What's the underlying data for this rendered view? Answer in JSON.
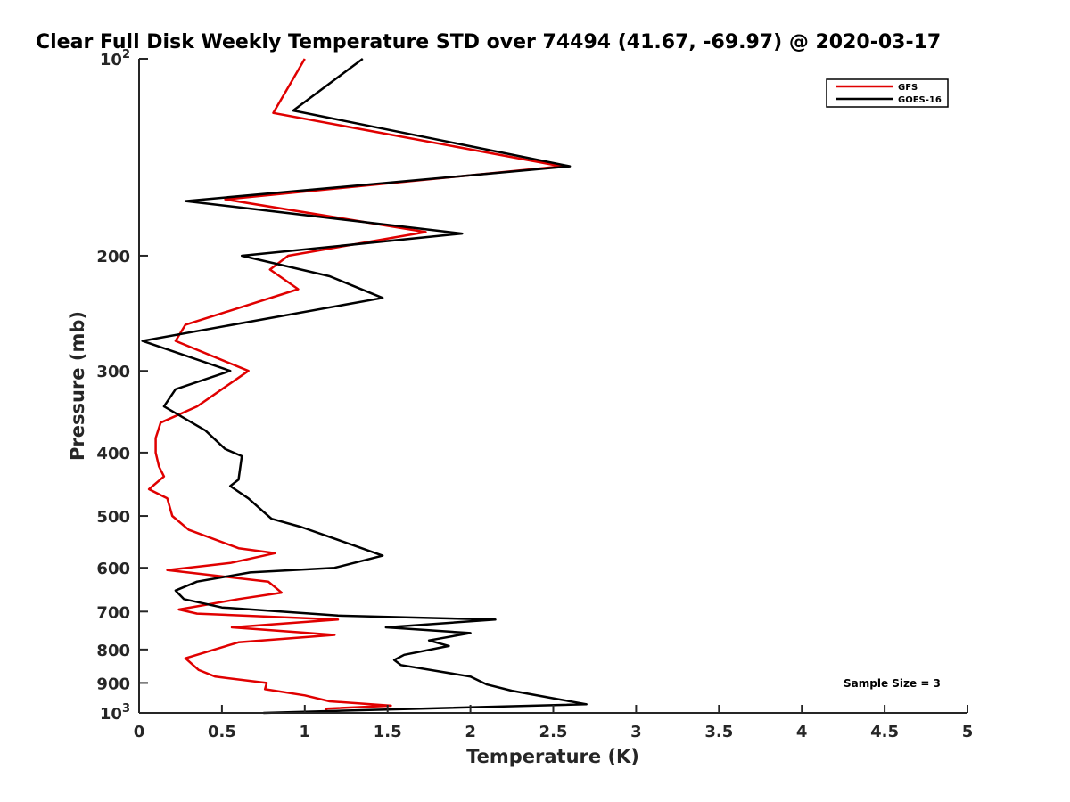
{
  "chart_data": {
    "type": "line",
    "title": "Clear Full Disk Weekly Temperature STD over 74494 (41.67, -69.97) @ 2020-03-17",
    "xlabel": "Temperature (K)",
    "ylabel": "Pressure (mb)",
    "xlim": [
      0,
      5
    ],
    "ylim": [
      100,
      1000
    ],
    "yscale": "log",
    "yreversed": true,
    "grid": false,
    "legend_location": "top-right",
    "annotation": "Sample Size = 3",
    "x_ticks": [
      "0",
      "0.5",
      "1",
      "1.5",
      "2",
      "2.5",
      "3",
      "3.5",
      "4",
      "4.5",
      "5"
    ],
    "y_ticks": [
      {
        "value": 100,
        "base": "10",
        "exp": "2"
      },
      {
        "value": 200,
        "label": "200"
      },
      {
        "value": 300,
        "label": "300"
      },
      {
        "value": 400,
        "label": "400"
      },
      {
        "value": 500,
        "label": "500"
      },
      {
        "value": 600,
        "label": "600"
      },
      {
        "value": 700,
        "label": "700"
      },
      {
        "value": 800,
        "label": "800"
      },
      {
        "value": 900,
        "label": "900"
      },
      {
        "value": 1000,
        "base": "10",
        "exp": "3"
      }
    ],
    "series": [
      {
        "name": "GFS",
        "color": "#e00000",
        "points": [
          [
            1.0,
            100
          ],
          [
            0.81,
            121
          ],
          [
            2.55,
            146
          ],
          [
            0.52,
            164
          ],
          [
            1.73,
            184
          ],
          [
            0.9,
            200
          ],
          [
            0.79,
            210
          ],
          [
            0.96,
            225
          ],
          [
            0.28,
            255
          ],
          [
            0.22,
            270
          ],
          [
            0.66,
            300
          ],
          [
            0.35,
            340
          ],
          [
            0.13,
            360
          ],
          [
            0.1,
            380
          ],
          [
            0.1,
            400
          ],
          [
            0.12,
            420
          ],
          [
            0.15,
            435
          ],
          [
            0.06,
            455
          ],
          [
            0.17,
            470
          ],
          [
            0.2,
            500
          ],
          [
            0.3,
            525
          ],
          [
            0.6,
            560
          ],
          [
            0.82,
            570
          ],
          [
            0.55,
            590
          ],
          [
            0.17,
            605
          ],
          [
            0.78,
            630
          ],
          [
            0.86,
            655
          ],
          [
            0.6,
            670
          ],
          [
            0.24,
            695
          ],
          [
            0.35,
            705
          ],
          [
            1.2,
            720
          ],
          [
            0.56,
            740
          ],
          [
            1.18,
            760
          ],
          [
            0.6,
            780
          ],
          [
            0.28,
            825
          ],
          [
            0.36,
            860
          ],
          [
            0.46,
            880
          ],
          [
            0.77,
            900
          ],
          [
            0.76,
            920
          ],
          [
            1.0,
            940
          ],
          [
            1.15,
            960
          ],
          [
            1.52,
            975
          ],
          [
            1.13,
            985
          ],
          [
            1.13,
            992
          ]
        ]
      },
      {
        "name": "GOES-16",
        "color": "#000000",
        "points": [
          [
            1.35,
            100
          ],
          [
            0.93,
            120
          ],
          [
            2.6,
            146
          ],
          [
            0.28,
            165
          ],
          [
            1.95,
            185
          ],
          [
            0.62,
            200
          ],
          [
            1.15,
            215
          ],
          [
            1.47,
            232
          ],
          [
            0.02,
            270
          ],
          [
            0.55,
            300
          ],
          [
            0.22,
            320
          ],
          [
            0.15,
            340
          ],
          [
            0.4,
            370
          ],
          [
            0.52,
            395
          ],
          [
            0.62,
            405
          ],
          [
            0.6,
            440
          ],
          [
            0.55,
            450
          ],
          [
            0.66,
            470
          ],
          [
            0.76,
            495
          ],
          [
            0.8,
            505
          ],
          [
            0.98,
            520
          ],
          [
            1.3,
            555
          ],
          [
            1.47,
            575
          ],
          [
            1.18,
            600
          ],
          [
            0.67,
            610
          ],
          [
            0.35,
            630
          ],
          [
            0.22,
            650
          ],
          [
            0.27,
            670
          ],
          [
            0.5,
            690
          ],
          [
            1.2,
            710
          ],
          [
            2.15,
            720
          ],
          [
            1.49,
            740
          ],
          [
            2.0,
            755
          ],
          [
            1.75,
            775
          ],
          [
            1.87,
            790
          ],
          [
            1.6,
            815
          ],
          [
            1.54,
            830
          ],
          [
            1.58,
            845
          ],
          [
            2.0,
            880
          ],
          [
            2.1,
            905
          ],
          [
            2.25,
            925
          ],
          [
            2.5,
            950
          ],
          [
            2.7,
            970
          ],
          [
            1.7,
            985
          ],
          [
            0.75,
            1000
          ]
        ]
      }
    ]
  }
}
